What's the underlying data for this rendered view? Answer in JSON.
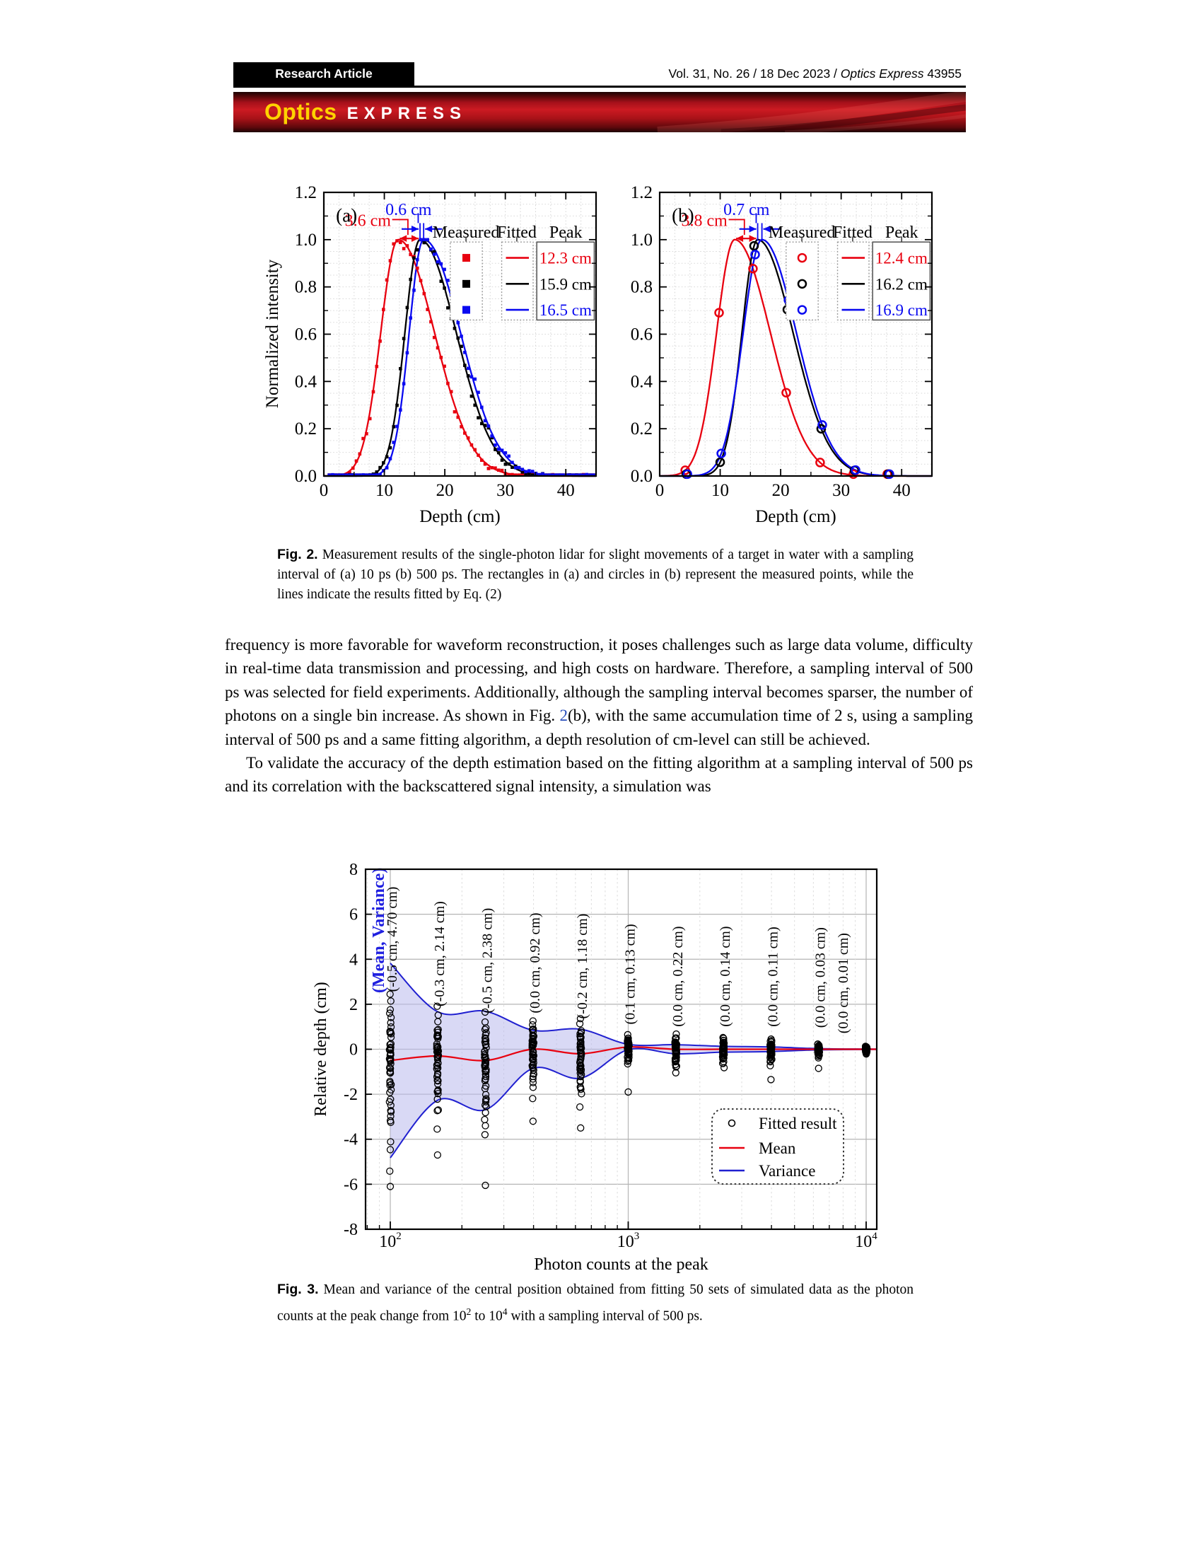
{
  "header": {
    "article_type": "Research Article",
    "volume_prefix": "Vol. 31, No. 26 / 18 Dec 2023 / ",
    "journal_name": "Optics Express",
    "page_number": "43955",
    "logo_primary": "Optics",
    "logo_secondary": "EXPRESS"
  },
  "fig2_caption": {
    "label": "Fig. 2.",
    "text": " Measurement results of the single-photon lidar for slight movements of a target in water with a sampling interval of (a) 10 ps (b) 500 ps. The rectangles in (a) and circles in (b) represent the measured points, while the lines indicate the results fitted by Eq. (2)"
  },
  "body": {
    "p1_before": "frequency is more favorable for waveform reconstruction, it poses challenges such as large data volume, difficulty in real-time data transmission and processing, and high costs on hardware. Therefore, a sampling interval of 500 ps was selected for field experiments. Additionally, although the sampling interval becomes sparser, the number of photons on a single bin increase. As shown in Fig. ",
    "p1_link": "2",
    "p1_after": "(b), with the same accumulation time of 2 s, using a sampling interval of 500 ps and a same fitting algorithm, a depth resolution of cm-level can still be achieved.",
    "p2": "To validate the accuracy of the depth estimation based on the fitting algorithm at a sampling interval of 500 ps and its correlation with the backscattered signal intensity, a simulation was"
  },
  "fig3_caption": {
    "label": "Fig. 3.",
    "t1": " Mean and variance of the central position obtained from fitting 50 sets of simulated data as the photon counts at the peak change from 10",
    "sup1": "2",
    "t2": " to 10",
    "sup2": "4",
    "t3": " with a sampling interval of 500 ps."
  },
  "chart_data": [
    {
      "type": "line",
      "panel": "(a)",
      "xlabel": "Depth (cm)",
      "ylabel": "Normalized intensity",
      "xlim": [
        0,
        45
      ],
      "ylim": [
        0.0,
        1.2
      ],
      "xticks": [
        0,
        10,
        20,
        30,
        40
      ],
      "yticks": [
        "0.0",
        "0.2",
        "0.4",
        "0.6",
        "0.8",
        "1.0",
        "1.2"
      ],
      "legend_headers": [
        "Measured",
        "Fitted",
        "Peak"
      ],
      "marker": "square",
      "marker_step": 0.56,
      "series": [
        {
          "peak_label": "12.3 cm",
          "color": "#e8000f",
          "peak": 12.3,
          "sigma_left": 2.9,
          "sigma_right": 6.0
        },
        {
          "peak_label": "15.9 cm",
          "color": "#000000",
          "peak": 15.9,
          "sigma_left": 2.5,
          "sigma_right": 6.0
        },
        {
          "peak_label": "16.5 cm",
          "color": "#0a0af0",
          "peak": 16.5,
          "sigma_left": 2.4,
          "sigma_right": 6.1
        }
      ],
      "annotations": [
        {
          "label": "3.6 cm",
          "color": "#e8000f",
          "from": 12.3,
          "to": 15.9,
          "style": "span"
        },
        {
          "label": "0.6 cm",
          "color": "#0a0af0",
          "from": 15.9,
          "to": 16.5,
          "style": "converge"
        }
      ]
    },
    {
      "type": "line",
      "panel": "(b)",
      "xlabel": "Depth (cm)",
      "ylabel": "",
      "xlim": [
        0,
        45
      ],
      "ylim": [
        0.0,
        1.2
      ],
      "xticks": [
        0,
        10,
        20,
        30,
        40
      ],
      "yticks": [
        "0.0",
        "0.2",
        "0.4",
        "0.6",
        "0.8",
        "1.0",
        "1.2"
      ],
      "legend_headers": [
        "Measured",
        "Fitted",
        "Peak"
      ],
      "marker": "circle",
      "sample_x": [
        4.4,
        10.0,
        15.6,
        21.1,
        26.7,
        32.2,
        37.8
      ],
      "series": [
        {
          "peak_label": "12.4 cm",
          "color": "#e8000f",
          "peak": 12.4,
          "sigma_left": 3.0,
          "sigma_right": 5.9
        },
        {
          "peak_label": "16.2 cm",
          "color": "#000000",
          "peak": 16.2,
          "sigma_left": 2.6,
          "sigma_right": 5.85
        },
        {
          "peak_label": "16.9 cm",
          "color": "#0a0af0",
          "peak": 16.9,
          "sigma_left": 3.1,
          "sigma_right": 5.7
        }
      ],
      "annotations": [
        {
          "label": "3.8 cm",
          "color": "#e8000f",
          "from": 12.4,
          "to": 16.2,
          "style": "span"
        },
        {
          "label": "0.7 cm",
          "color": "#0a0af0",
          "from": 16.2,
          "to": 16.9,
          "style": "converge"
        }
      ]
    },
    {
      "type": "scatter+band",
      "xlabel": "Photon counts at the peak",
      "ylabel": "Relative depth (cm)",
      "ylim": [
        -8,
        8
      ],
      "yticks": [
        8,
        6,
        4,
        2,
        0,
        -2,
        -4,
        -6,
        -8
      ],
      "xticks_log": [
        2,
        3,
        4
      ],
      "n_sets": 50,
      "x": [
        100,
        158,
        251,
        398,
        631,
        1000,
        1585,
        2512,
        3981,
        6310,
        10000
      ],
      "mean": [
        -0.5,
        -0.3,
        -0.5,
        0.0,
        -0.2,
        0.1,
        0.0,
        0.0,
        0.0,
        0.0,
        0.0
      ],
      "variance": [
        4.7,
        2.14,
        2.38,
        0.92,
        1.18,
        0.13,
        0.22,
        0.14,
        0.11,
        0.03,
        0.01
      ],
      "labels": [
        "(-0.5 cm, 4.70 cm)",
        "(-0.3 cm, 2.14 cm)",
        "(-0.5 cm, 2.38 cm)",
        "(0.0 cm, 0.92 cm)",
        "(-0.2 cm, 1.18 cm)",
        "(0.1 cm, 0.13 cm)",
        "(0.0 cm, 0.22 cm)",
        "(0.0 cm, 0.14 cm)",
        "(0.0 cm, 0.11 cm)",
        "(0.0 cm, 0.03 cm)",
        "(0.0 cm, 0.01 cm)"
      ],
      "label_anchor": [
        2.55,
        1.9,
        1.6,
        1.6,
        1.35,
        1.1,
        1.0,
        1.0,
        1.0,
        0.95,
        0.7
      ],
      "outliers": [
        [
          0,
          -6.1
        ],
        [
          1,
          -4.7
        ],
        [
          2,
          -6.05
        ],
        [
          2,
          -3.4
        ],
        [
          3,
          -3.2
        ],
        [
          4,
          -3.5
        ],
        [
          5,
          -1.9
        ],
        [
          8,
          -1.35
        ],
        [
          9,
          -0.85
        ]
      ],
      "annotation": "(Mean, Variance)",
      "legend": [
        {
          "marker": "circle",
          "color": "#000000",
          "label": "Fitted result"
        },
        {
          "marker": "line",
          "color": "#e8000f",
          "label": "Mean"
        },
        {
          "marker": "line",
          "color": "#2020d0",
          "label": "Variance"
        }
      ],
      "colors": {
        "band_fill": "#b9b9ec",
        "band_edge": "#2020d0",
        "mean_line": "#e8000f",
        "annotation": "#2020e0"
      }
    }
  ]
}
